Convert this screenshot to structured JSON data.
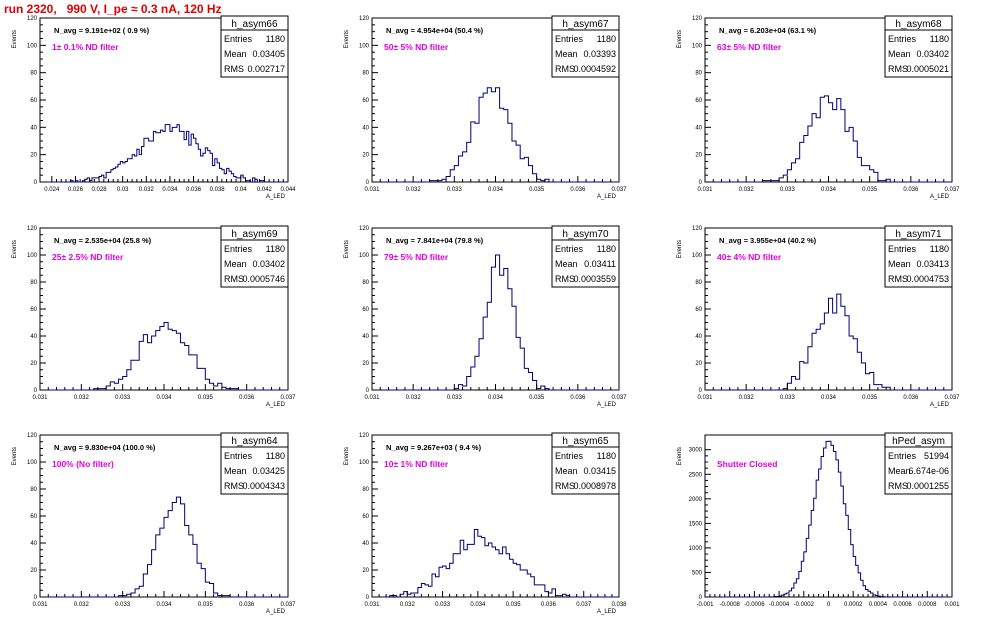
{
  "page": {
    "title": "run 2320,   990 V, I_pe ≈ 0.3 nA, 120 Hz"
  },
  "colors": {
    "histogram": "#00007a",
    "axis": "#000000",
    "annotation": "#e000e0",
    "title": "#e00000"
  },
  "chart_data": [
    {
      "type": "bar",
      "name": "h_asym66",
      "ylabel": "Events",
      "xlabel": "A_LED",
      "xlim": [
        0.023,
        0.044
      ],
      "ylim": [
        0,
        120
      ],
      "xticks": [
        "0.024",
        "0.026",
        "0.028",
        "0.03",
        "0.032",
        "0.034",
        "0.036",
        "0.038",
        "0.04",
        "0.042",
        "0.044"
      ],
      "yticks": [
        "0",
        "20",
        "40",
        "60",
        "80",
        "100",
        "120"
      ],
      "stats": {
        "title": "h_asym66",
        "entries": "1180",
        "mean": "0.03405",
        "rms": "0.002717"
      },
      "annotation": "N_avg = 9.191e+02 ( 0.9 %)",
      "filter_label": "1± 0.1% ND filter",
      "distribution": {
        "mean": 0.03405,
        "sigma": 0.002717,
        "peak": 38,
        "step": 0.0002,
        "seed": 66
      }
    },
    {
      "type": "bar",
      "name": "h_asym67",
      "ylabel": "Events",
      "xlabel": "A_LED",
      "xlim": [
        0.031,
        0.037
      ],
      "ylim": [
        0,
        120
      ],
      "xticks": [
        "0.031",
        "0.032",
        "0.033",
        "0.034",
        "0.035",
        "0.036",
        "0.037"
      ],
      "yticks": [
        "0",
        "20",
        "40",
        "60",
        "80",
        "100",
        "120"
      ],
      "stats": {
        "title": "h_asym67",
        "entries": "1180",
        "mean": "0.03393",
        "rms": "0.0004592"
      },
      "annotation": "N_avg = 4.954e+04 (50.4 %)",
      "filter_label": "50± 5% ND filter",
      "distribution": {
        "mean": 0.03393,
        "sigma": 0.00046,
        "peak": 70,
        "step": 0.0001,
        "seed": 67
      }
    },
    {
      "type": "bar",
      "name": "h_asym68",
      "ylabel": "Events",
      "xlabel": "A_LED",
      "xlim": [
        0.031,
        0.037
      ],
      "ylim": [
        0,
        120
      ],
      "xticks": [
        "0.031",
        "0.032",
        "0.033",
        "0.034",
        "0.035",
        "0.036",
        "0.037"
      ],
      "yticks": [
        "0",
        "20",
        "40",
        "60",
        "80",
        "100",
        "120"
      ],
      "stats": {
        "title": "h_asym68",
        "entries": "1180",
        "mean": "0.03402",
        "rms": "0.0005021"
      },
      "annotation": "N_avg = 6.203e+04 (63.1 %)",
      "filter_label": "63± 5% ND filter",
      "distribution": {
        "mean": 0.03402,
        "sigma": 0.0005,
        "peak": 60,
        "step": 0.0001,
        "seed": 68
      }
    },
    {
      "type": "bar",
      "name": "h_asym69",
      "ylabel": "Events",
      "xlabel": "A_LED",
      "xlim": [
        0.031,
        0.037
      ],
      "ylim": [
        0,
        120
      ],
      "xticks": [
        "0.031",
        "0.032",
        "0.033",
        "0.034",
        "0.035",
        "0.036",
        "0.037"
      ],
      "yticks": [
        "0",
        "20",
        "40",
        "60",
        "80",
        "100",
        "120"
      ],
      "stats": {
        "title": "h_asym69",
        "entries": "1180",
        "mean": "0.03402",
        "rms": "0.0005746"
      },
      "annotation": "N_avg = 2.535e+04 (25.8 %)",
      "filter_label": "25± 2.5% ND filter",
      "distribution": {
        "mean": 0.03402,
        "sigma": 0.00057,
        "peak": 50,
        "step": 0.0001,
        "seed": 69
      }
    },
    {
      "type": "bar",
      "name": "h_asym70",
      "ylabel": "Events",
      "xlabel": "A_LED",
      "xlim": [
        0.031,
        0.037
      ],
      "ylim": [
        0,
        120
      ],
      "xticks": [
        "0.031",
        "0.032",
        "0.033",
        "0.034",
        "0.035",
        "0.036",
        "0.037"
      ],
      "yticks": [
        "0",
        "20",
        "40",
        "60",
        "80",
        "100",
        "120"
      ],
      "stats": {
        "title": "h_asym70",
        "entries": "1180",
        "mean": "0.03411",
        "rms": "0.0003559"
      },
      "annotation": "N_avg = 7.841e+04 (79.8 %)",
      "filter_label": "79± 5% ND filter",
      "distribution": {
        "mean": 0.03411,
        "sigma": 0.00036,
        "peak": 95,
        "step": 0.0001,
        "seed": 70
      }
    },
    {
      "type": "bar",
      "name": "h_asym71",
      "ylabel": "Events",
      "xlabel": "A_LED",
      "xlim": [
        0.031,
        0.037
      ],
      "ylim": [
        0,
        120
      ],
      "xticks": [
        "0.031",
        "0.032",
        "0.033",
        "0.034",
        "0.035",
        "0.036",
        "0.037"
      ],
      "yticks": [
        "0",
        "20",
        "40",
        "60",
        "80",
        "100",
        "120"
      ],
      "stats": {
        "title": "h_asym71",
        "entries": "1180",
        "mean": "0.03413",
        "rms": "0.0004753"
      },
      "annotation": "N_avg = 3.955e+04 (40.2 %)",
      "filter_label": "40± 4% ND filter",
      "distribution": {
        "mean": 0.03413,
        "sigma": 0.00047,
        "peak": 65,
        "step": 0.0001,
        "seed": 71
      }
    },
    {
      "type": "bar",
      "name": "h_asym64",
      "ylabel": "Events",
      "xlabel": "A_LED",
      "xlim": [
        0.031,
        0.037
      ],
      "ylim": [
        0,
        120
      ],
      "xticks": [
        "0.031",
        "0.032",
        "0.033",
        "0.034",
        "0.035",
        "0.036",
        "0.037"
      ],
      "yticks": [
        "0",
        "20",
        "40",
        "60",
        "80",
        "100",
        "120"
      ],
      "stats": {
        "title": "h_asym64",
        "entries": "1180",
        "mean": "0.03425",
        "rms": "0.0004343"
      },
      "annotation": "N_avg = 9.830e+04 (100.0 %)",
      "filter_label": "100% (No filter)",
      "distribution": {
        "mean": 0.03425,
        "sigma": 0.00043,
        "peak": 68,
        "step": 0.0001,
        "seed": 64
      }
    },
    {
      "type": "bar",
      "name": "h_asym65",
      "ylabel": "Events",
      "xlabel": "A_LED",
      "xlim": [
        0.031,
        0.038
      ],
      "ylim": [
        0,
        120
      ],
      "xticks": [
        "0.031",
        "0.032",
        "0.033",
        "0.034",
        "0.035",
        "0.036",
        "0.037",
        "0.038"
      ],
      "yticks": [
        "0",
        "20",
        "40",
        "60",
        "80",
        "100",
        "120"
      ],
      "stats": {
        "title": "h_asym65",
        "entries": "1180",
        "mean": "0.03415",
        "rms": "0.0008978"
      },
      "annotation": "N_avg = 9.267e+03 ( 9.4 %)",
      "filter_label": "10± 1% ND filter",
      "distribution": {
        "mean": 0.03415,
        "sigma": 0.0009,
        "peak": 45,
        "step": 0.0001,
        "seed": 65
      }
    },
    {
      "type": "bar",
      "name": "hPed_asym",
      "ylabel": "Events",
      "xlabel": "",
      "xlim": [
        -0.001,
        0.001
      ],
      "ylim": [
        0,
        3300
      ],
      "xticks": [
        "-0.001",
        "-0.0008",
        "-0.0006",
        "-0.0004",
        "-0.0002",
        "0",
        "0.0002",
        "0.0004",
        "0.0006",
        "0.0008",
        "0.001"
      ],
      "yticks": [
        "0",
        "500",
        "1000",
        "1500",
        "2000",
        "2500",
        "3000"
      ],
      "stats": {
        "title": "hPed_asym",
        "entries": "51994",
        "mean": "6.674e-06",
        "rms": "0.0001255"
      },
      "annotation": "",
      "filter_label": "Shutter Closed",
      "distribution": {
        "mean": 6.7e-06,
        "sigma": 0.000125,
        "peak": 3150,
        "step": 2e-05,
        "seed": 99
      }
    }
  ]
}
